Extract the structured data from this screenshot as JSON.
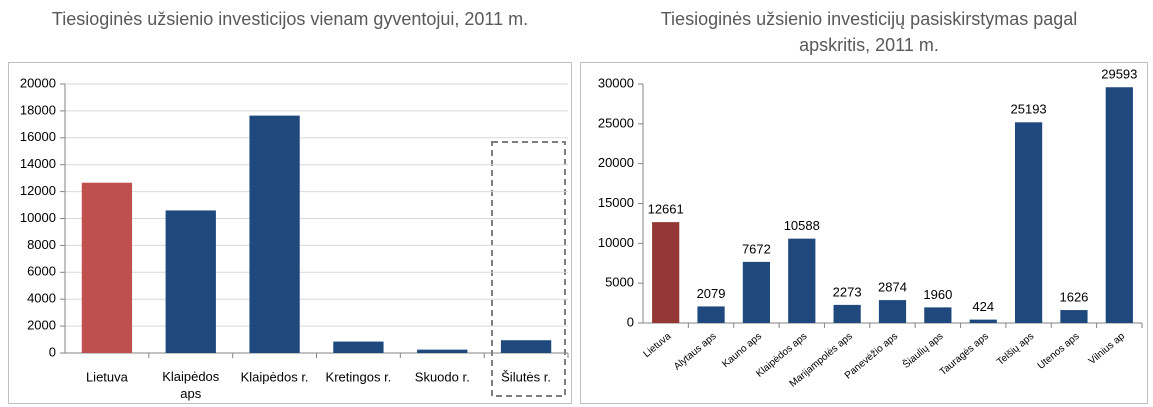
{
  "chart_data": [
    {
      "type": "bar",
      "title": "Tiesioginės užsienio investicijos vienam gyventojui, 2011 m.",
      "categories": [
        "Lietuva",
        "Klaipėdos aps",
        "Klaipėdos r.",
        "Kretingos r.",
        "Skuodo r.",
        "Šilutės r."
      ],
      "values": [
        12661,
        10600,
        17650,
        850,
        250,
        950
      ],
      "colors": [
        "#c0504d",
        "#1f497d",
        "#1f497d",
        "#1f497d",
        "#1f497d",
        "#1f497d"
      ],
      "ylim": [
        0,
        20000
      ],
      "yticks": [
        0,
        2000,
        4000,
        6000,
        8000,
        10000,
        12000,
        14000,
        16000,
        18000,
        20000
      ],
      "grid": true
    },
    {
      "type": "bar",
      "title": "Tiesioginės užsienio investicijų pasiskirstymas pagal apskritis, 2011 m.",
      "categories": [
        "Lietuva",
        "Alytaus aps",
        "Kauno aps",
        "Klaipėdos aps",
        "Marijampolės aps",
        "Panevėžio aps",
        "Šiaulių aps",
        "Tauragės aps",
        "Telšių aps",
        "Utenos aps",
        "Vilnius ap"
      ],
      "values": [
        12661,
        2079,
        7672,
        10588,
        2273,
        2874,
        1960,
        424,
        25193,
        1626,
        29593
      ],
      "colors": [
        "#953735",
        "#1f497d",
        "#1f497d",
        "#1f497d",
        "#1f497d",
        "#1f497d",
        "#1f497d",
        "#1f497d",
        "#1f497d",
        "#1f497d",
        "#1f497d"
      ],
      "ylim": [
        0,
        30000
      ],
      "yticks": [
        0,
        5000,
        10000,
        15000,
        20000,
        25000,
        30000
      ],
      "grid": false
    }
  ]
}
